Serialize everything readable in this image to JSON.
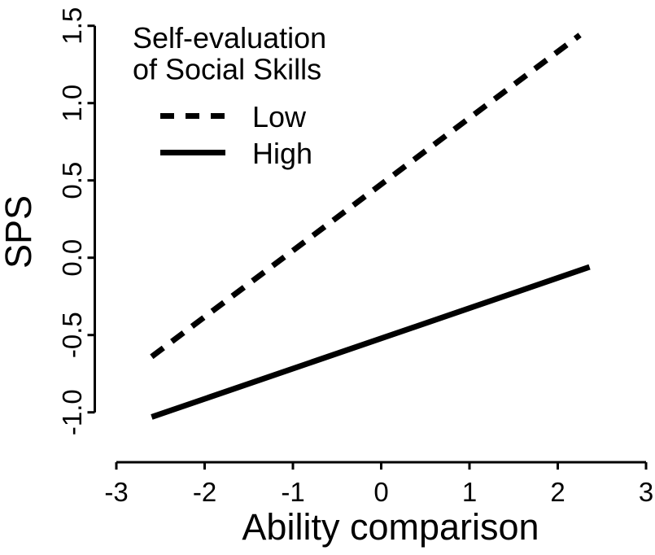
{
  "chart_data": {
    "type": "line",
    "title": "",
    "xlabel": "Ability comparison",
    "ylabel": "SPS",
    "xlim": [
      -3,
      3
    ],
    "ylim": [
      -1.0,
      1.5
    ],
    "grid": false,
    "background_color": "#ffffff",
    "line_color": "#000000",
    "x_ticks": [
      {
        "value": -3,
        "label": "-3"
      },
      {
        "value": -2,
        "label": "-2"
      },
      {
        "value": -1,
        "label": "-1"
      },
      {
        "value": 0,
        "label": "0"
      },
      {
        "value": 1,
        "label": "1"
      },
      {
        "value": 2,
        "label": "2"
      },
      {
        "value": 3,
        "label": "3"
      }
    ],
    "y_ticks": [
      {
        "value": 1.5,
        "label": "1.5"
      },
      {
        "value": 1.0,
        "label": "1.0"
      },
      {
        "value": 0.5,
        "label": "0.5"
      },
      {
        "value": 0.0,
        "label": "0.0"
      },
      {
        "value": -0.5,
        "label": "-0.5"
      },
      {
        "value": -1.0,
        "label": "-1.0"
      }
    ],
    "legend": {
      "position": "top-left",
      "title_line1": "Self-evaluation",
      "title_line2": "of Social Skills"
    },
    "series": [
      {
        "name": "Low",
        "style": "dashed",
        "points": [
          [
            -2.6,
            -0.64
          ],
          [
            2.25,
            1.44
          ]
        ]
      },
      {
        "name": "High",
        "style": "solid",
        "points": [
          [
            -2.6,
            -1.03
          ],
          [
            2.36,
            -0.06
          ]
        ]
      }
    ]
  }
}
